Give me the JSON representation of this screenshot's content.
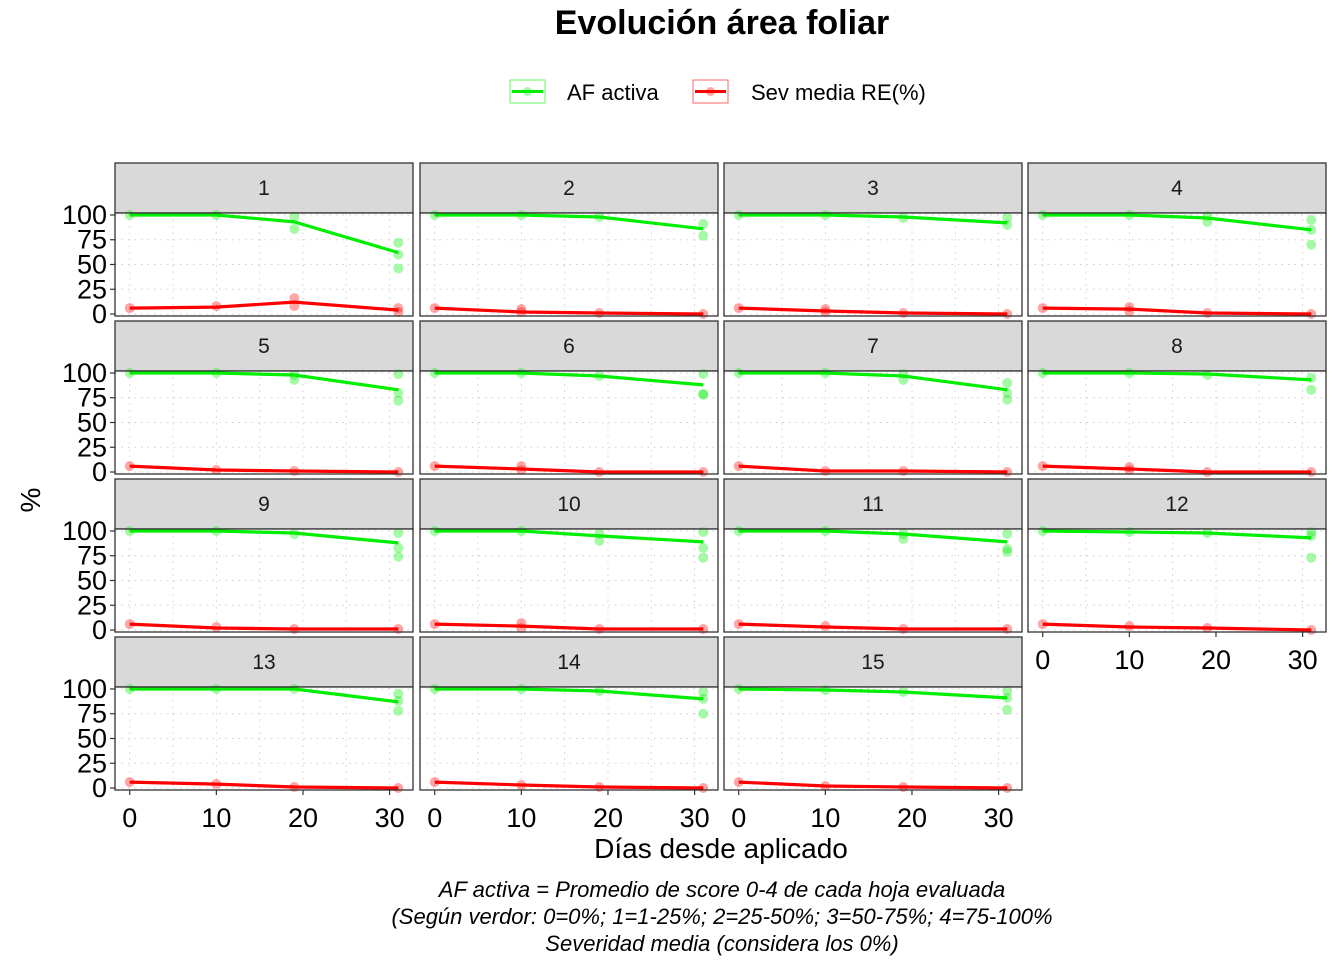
{
  "chart_data": {
    "type": "line",
    "title": "Evolución área foliar",
    "xlabel": "Días desde aplicado",
    "ylabel": "%",
    "caption": [
      "AF activa = Promedio de score 0-4 de cada hoja evaluada",
      "(Según verdor: 0=0%; 1=1-25%; 2=25-50%; 3=50-75%; 4=75-100%",
      "Severidad media (considera los 0%)"
    ],
    "legend": {
      "position": "top",
      "entries": [
        {
          "label": "AF activa",
          "color": "#00ee00"
        },
        {
          "label": "Sev media RE(%)",
          "color": "#ff0000"
        }
      ]
    },
    "x_ticks": [
      0,
      10,
      20,
      30
    ],
    "y_ticks": [
      0,
      25,
      50,
      75,
      100
    ],
    "xlim": [
      -1.7,
      32.7
    ],
    "ylim": [
      -2,
      102
    ],
    "x": [
      0,
      10,
      19,
      31
    ],
    "grid": "dotted",
    "panels": [
      {
        "label": "1",
        "af": [
          100,
          100,
          93,
          62
        ],
        "sev": [
          6,
          7,
          12,
          4
        ],
        "af_points": [
          [
            0,
            100
          ],
          [
            10,
            100
          ],
          [
            19,
            98
          ],
          [
            19,
            86
          ],
          [
            31,
            72
          ],
          [
            31,
            60
          ],
          [
            31,
            46
          ]
        ],
        "sev_points": [
          [
            0,
            6
          ],
          [
            10,
            8
          ],
          [
            19,
            16
          ],
          [
            19,
            8
          ],
          [
            31,
            6
          ],
          [
            31,
            2
          ]
        ]
      },
      {
        "label": "2",
        "af": [
          100,
          100,
          98,
          86
        ],
        "sev": [
          6,
          2,
          1,
          0
        ],
        "af_points": [
          [
            0,
            100
          ],
          [
            10,
            100
          ],
          [
            19,
            98
          ],
          [
            31,
            91
          ],
          [
            31,
            79
          ]
        ],
        "sev_points": [
          [
            0,
            6
          ],
          [
            10,
            5
          ],
          [
            10,
            2
          ],
          [
            19,
            1
          ],
          [
            31,
            0
          ]
        ]
      },
      {
        "label": "3",
        "af": [
          100,
          100,
          98,
          92
        ],
        "sev": [
          6,
          3,
          1,
          0
        ],
        "af_points": [
          [
            0,
            100
          ],
          [
            10,
            100
          ],
          [
            19,
            97
          ],
          [
            31,
            97
          ],
          [
            31,
            90
          ]
        ],
        "sev_points": [
          [
            0,
            6
          ],
          [
            10,
            5
          ],
          [
            10,
            2
          ],
          [
            19,
            1
          ],
          [
            31,
            0
          ]
        ]
      },
      {
        "label": "4",
        "af": [
          100,
          100,
          97,
          85
        ],
        "sev": [
          6,
          5,
          1,
          0
        ],
        "af_points": [
          [
            0,
            100
          ],
          [
            10,
            100
          ],
          [
            19,
            99
          ],
          [
            19,
            93
          ],
          [
            31,
            95
          ],
          [
            31,
            85
          ],
          [
            31,
            70
          ]
        ],
        "sev_points": [
          [
            0,
            6
          ],
          [
            10,
            7
          ],
          [
            10,
            3
          ],
          [
            19,
            1
          ],
          [
            31,
            0
          ]
        ]
      },
      {
        "label": "5",
        "af": [
          100,
          100,
          98,
          83
        ],
        "sev": [
          6,
          2,
          1,
          0
        ],
        "af_points": [
          [
            0,
            100
          ],
          [
            10,
            100
          ],
          [
            19,
            98
          ],
          [
            19,
            93
          ],
          [
            31,
            99
          ],
          [
            31,
            80
          ],
          [
            31,
            72
          ]
        ],
        "sev_points": [
          [
            0,
            6
          ],
          [
            10,
            2
          ],
          [
            19,
            1
          ],
          [
            31,
            0
          ]
        ]
      },
      {
        "label": "6",
        "af": [
          100,
          100,
          97,
          88
        ],
        "sev": [
          6,
          3,
          0,
          0
        ],
        "af_points": [
          [
            0,
            100
          ],
          [
            10,
            100
          ],
          [
            19,
            97
          ],
          [
            31,
            99
          ],
          [
            31,
            79
          ],
          [
            31,
            78
          ]
        ],
        "sev_points": [
          [
            0,
            6
          ],
          [
            10,
            6
          ],
          [
            10,
            2
          ],
          [
            19,
            0
          ],
          [
            31,
            0
          ]
        ]
      },
      {
        "label": "7",
        "af": [
          100,
          100,
          97,
          83
        ],
        "sev": [
          6,
          1,
          1,
          0
        ],
        "af_points": [
          [
            0,
            100
          ],
          [
            10,
            100
          ],
          [
            19,
            99
          ],
          [
            19,
            93
          ],
          [
            31,
            90
          ],
          [
            31,
            80
          ],
          [
            31,
            73
          ]
        ],
        "sev_points": [
          [
            0,
            6
          ],
          [
            10,
            1
          ],
          [
            19,
            1
          ],
          [
            31,
            0
          ]
        ]
      },
      {
        "label": "8",
        "af": [
          100,
          100,
          99,
          93
        ],
        "sev": [
          6,
          3,
          0,
          0
        ],
        "af_points": [
          [
            0,
            100
          ],
          [
            10,
            100
          ],
          [
            19,
            98
          ],
          [
            31,
            95
          ],
          [
            31,
            83
          ]
        ],
        "sev_points": [
          [
            0,
            6
          ],
          [
            10,
            5
          ],
          [
            10,
            2
          ],
          [
            19,
            0
          ],
          [
            31,
            0
          ]
        ]
      },
      {
        "label": "9",
        "af": [
          100,
          100,
          98,
          88
        ],
        "sev": [
          6,
          2,
          1,
          1
        ],
        "af_points": [
          [
            0,
            100
          ],
          [
            10,
            100
          ],
          [
            19,
            97
          ],
          [
            31,
            98
          ],
          [
            31,
            83
          ],
          [
            31,
            74
          ]
        ],
        "sev_points": [
          [
            0,
            6
          ],
          [
            10,
            3
          ],
          [
            19,
            1
          ],
          [
            31,
            1
          ]
        ]
      },
      {
        "label": "10",
        "af": [
          100,
          100,
          95,
          89
        ],
        "sev": [
          6,
          4,
          1,
          1
        ],
        "af_points": [
          [
            0,
            100
          ],
          [
            10,
            100
          ],
          [
            19,
            97
          ],
          [
            19,
            90
          ],
          [
            31,
            99
          ],
          [
            31,
            83
          ],
          [
            31,
            73
          ]
        ],
        "sev_points": [
          [
            0,
            6
          ],
          [
            10,
            7
          ],
          [
            10,
            2
          ],
          [
            19,
            1
          ],
          [
            31,
            1
          ]
        ]
      },
      {
        "label": "11",
        "af": [
          100,
          100,
          97,
          89
        ],
        "sev": [
          6,
          3,
          1,
          1
        ],
        "af_points": [
          [
            0,
            100
          ],
          [
            10,
            100
          ],
          [
            19,
            97
          ],
          [
            19,
            92
          ],
          [
            31,
            97
          ],
          [
            31,
            82
          ],
          [
            31,
            79
          ]
        ],
        "sev_points": [
          [
            0,
            6
          ],
          [
            10,
            4
          ],
          [
            19,
            1
          ],
          [
            31,
            1
          ]
        ]
      },
      {
        "label": "12",
        "af": [
          100,
          99,
          98,
          93
        ],
        "sev": [
          6,
          3,
          2,
          0
        ],
        "af_points": [
          [
            0,
            100
          ],
          [
            10,
            99
          ],
          [
            19,
            98
          ],
          [
            31,
            99
          ],
          [
            31,
            95
          ],
          [
            31,
            73
          ]
        ],
        "sev_points": [
          [
            0,
            6
          ],
          [
            10,
            4
          ],
          [
            19,
            2
          ],
          [
            31,
            0
          ]
        ]
      },
      {
        "label": "13",
        "af": [
          100,
          100,
          100,
          87
        ],
        "sev": [
          6,
          4,
          1,
          0
        ],
        "af_points": [
          [
            0,
            100
          ],
          [
            10,
            100
          ],
          [
            19,
            100
          ],
          [
            31,
            95
          ],
          [
            31,
            88
          ],
          [
            31,
            78
          ]
        ],
        "sev_points": [
          [
            0,
            6
          ],
          [
            10,
            4
          ],
          [
            19,
            1
          ],
          [
            31,
            0
          ]
        ]
      },
      {
        "label": "14",
        "af": [
          100,
          100,
          98,
          90
        ],
        "sev": [
          6,
          3,
          1,
          0
        ],
        "af_points": [
          [
            0,
            100
          ],
          [
            10,
            100
          ],
          [
            19,
            98
          ],
          [
            31,
            97
          ],
          [
            31,
            90
          ],
          [
            31,
            75
          ]
        ],
        "sev_points": [
          [
            0,
            6
          ],
          [
            10,
            3
          ],
          [
            19,
            1
          ],
          [
            31,
            0
          ]
        ]
      },
      {
        "label": "15",
        "af": [
          100,
          99,
          97,
          91
        ],
        "sev": [
          6,
          2,
          1,
          0
        ],
        "af_points": [
          [
            0,
            100
          ],
          [
            10,
            99
          ],
          [
            19,
            97
          ],
          [
            31,
            98
          ],
          [
            31,
            91
          ],
          [
            31,
            79
          ]
        ],
        "sev_points": [
          [
            0,
            6
          ],
          [
            10,
            2
          ],
          [
            19,
            1
          ],
          [
            31,
            0
          ]
        ]
      }
    ]
  }
}
